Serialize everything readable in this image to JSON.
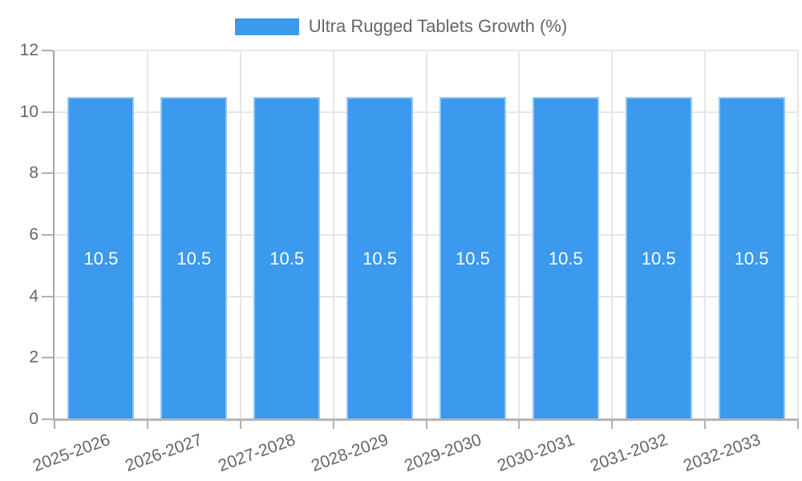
{
  "chart_data": {
    "type": "bar",
    "title": "Ultra Rugged Tablets Growth (%)",
    "categories": [
      "2025-2026",
      "2026-2027",
      "2027-2028",
      "2028-2029",
      "2029-2030",
      "2030-2031",
      "2031-2032",
      "2032-2033"
    ],
    "values": [
      10.5,
      10.5,
      10.5,
      10.5,
      10.5,
      10.5,
      10.5,
      10.5
    ],
    "bar_labels": [
      "10.5",
      "10.5",
      "10.5",
      "10.5",
      "10.5",
      "10.5",
      "10.5",
      "10.5"
    ],
    "xlabel": "",
    "ylabel": "",
    "ylim": [
      0,
      12
    ],
    "yticks": [
      0,
      2,
      4,
      6,
      8,
      10,
      12
    ],
    "grid": true,
    "legend_position": "top-center",
    "colors": {
      "bar": "#3b99ee",
      "bar_value_text": "#ffffff",
      "axis_text": "#666666",
      "gridline": "#e6e6e6",
      "y_axis_line": "#a8a8a8",
      "x_axis_line": "#b5b5b5",
      "tick": "#b0b0b0",
      "background": "#ffffff"
    }
  }
}
